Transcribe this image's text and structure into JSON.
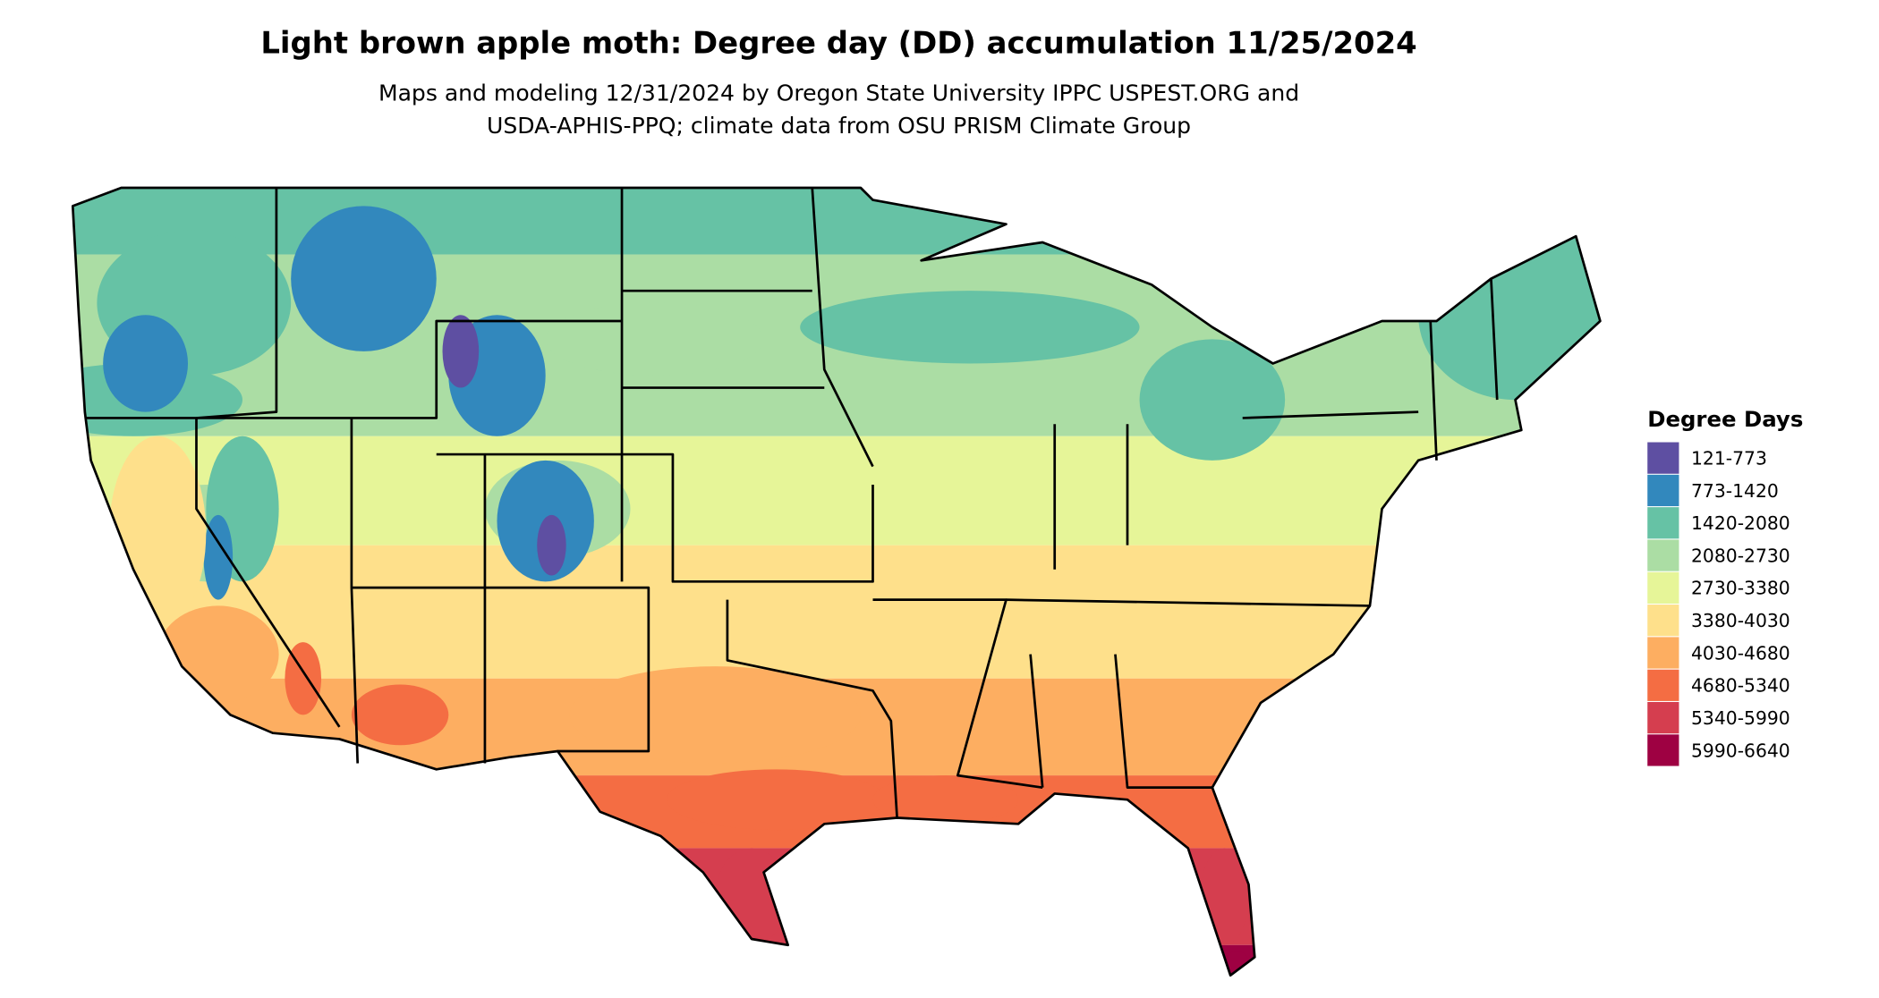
{
  "title": "Light brown apple moth: Degree day (DD) accumulation 11/25/2024",
  "subtitle": [
    "Maps and modeling 12/31/2024 by Oregon State University IPPC USPEST.ORG and",
    "USDA-APHIS-PPQ; climate data from OSU PRISM Climate Group"
  ],
  "legend": {
    "title": "Degree Days",
    "items": [
      {
        "label": "121-773",
        "color": "#5e4fa2"
      },
      {
        "label": "773-1420",
        "color": "#3288bd"
      },
      {
        "label": "1420-2080",
        "color": "#66c2a5"
      },
      {
        "label": "2080-2730",
        "color": "#abdda4"
      },
      {
        "label": "2730-3380",
        "color": "#e6f598"
      },
      {
        "label": "3380-4030",
        "color": "#fee08b"
      },
      {
        "label": "4030-4680",
        "color": "#fdae61"
      },
      {
        "label": "4680-5340",
        "color": "#f46d43"
      },
      {
        "label": "5340-5990",
        "color": "#d53e4f"
      },
      {
        "label": "5990-6640",
        "color": "#9e0142"
      }
    ]
  }
}
